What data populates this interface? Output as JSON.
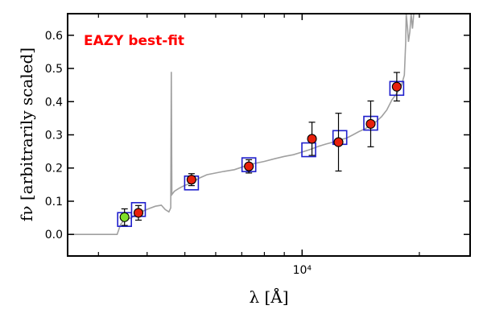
{
  "chart_data": {
    "type": "scatter",
    "annotation": "EAZY best-fit",
    "xlabel": "λ [Å]",
    "ylabel": "fν [arbitrarily scaled]",
    "xscale": "log",
    "xlim": [
      2500,
      27000
    ],
    "ylim": [
      -0.065,
      0.665
    ],
    "x_tick_labels": [
      {
        "value": 10000,
        "label": "10⁴"
      }
    ],
    "y_ticks": [
      0.0,
      0.1,
      0.2,
      0.3,
      0.4,
      0.5,
      0.6
    ],
    "y_tick_labels": [
      "0.0",
      "0.1",
      "0.2",
      "0.3",
      "0.4",
      "0.5",
      "0.6"
    ],
    "grid": false,
    "colors": {
      "annotation": "#ff0000",
      "model_line": "#a0a0a0",
      "observed_fill": "#e8200c",
      "special_fill": "#7fe02a",
      "model_box": "#1f1fcc",
      "errorbar": "#000000"
    },
    "model_photometry": [
      {
        "x": 3500,
        "y": 0.045
      },
      {
        "x": 3800,
        "y": 0.075
      },
      {
        "x": 5200,
        "y": 0.155
      },
      {
        "x": 7300,
        "y": 0.21
      },
      {
        "x": 10400,
        "y": 0.255
      },
      {
        "x": 12500,
        "y": 0.292
      },
      {
        "x": 15000,
        "y": 0.335
      },
      {
        "x": 17500,
        "y": 0.44
      }
    ],
    "observed_photometry": [
      {
        "x": 3500,
        "y": 0.052,
        "err": 0.025,
        "highlight": true
      },
      {
        "x": 3800,
        "y": 0.065,
        "err": 0.022,
        "highlight": false
      },
      {
        "x": 5200,
        "y": 0.165,
        "err": 0.018,
        "highlight": false
      },
      {
        "x": 7300,
        "y": 0.205,
        "err": 0.02,
        "highlight": false
      },
      {
        "x": 10600,
        "y": 0.288,
        "err": 0.05,
        "highlight": false
      },
      {
        "x": 12400,
        "y": 0.278,
        "err": 0.087,
        "highlight": false
      },
      {
        "x": 15000,
        "y": 0.333,
        "err": 0.069,
        "highlight": false
      },
      {
        "x": 17500,
        "y": 0.445,
        "err": 0.043,
        "highlight": false
      }
    ],
    "template_spectrum": [
      [
        2500,
        0.0
      ],
      [
        3350,
        0.0
      ],
      [
        3420,
        0.03
      ],
      [
        3500,
        0.045
      ],
      [
        3650,
        0.05
      ],
      [
        3750,
        0.062
      ],
      [
        3900,
        0.07
      ],
      [
        4050,
        0.078
      ],
      [
        4200,
        0.085
      ],
      [
        4350,
        0.088
      ],
      [
        4450,
        0.075
      ],
      [
        4550,
        0.068
      ],
      [
        4600,
        0.08
      ],
      [
        4615,
        0.49
      ],
      [
        4630,
        0.12
      ],
      [
        4700,
        0.13
      ],
      [
        4850,
        0.14
      ],
      [
        5000,
        0.148
      ],
      [
        5200,
        0.155
      ],
      [
        5450,
        0.17
      ],
      [
        5700,
        0.18
      ],
      [
        6000,
        0.185
      ],
      [
        6300,
        0.19
      ],
      [
        6700,
        0.195
      ],
      [
        7100,
        0.205
      ],
      [
        7500,
        0.213
      ],
      [
        8000,
        0.22
      ],
      [
        8500,
        0.228
      ],
      [
        9000,
        0.235
      ],
      [
        9500,
        0.24
      ],
      [
        10000,
        0.248
      ],
      [
        10500,
        0.256
      ],
      [
        11000,
        0.265
      ],
      [
        11500,
        0.272
      ],
      [
        12000,
        0.278
      ],
      [
        12500,
        0.285
      ],
      [
        13000,
        0.29
      ],
      [
        13500,
        0.3
      ],
      [
        14000,
        0.31
      ],
      [
        14500,
        0.318
      ],
      [
        15000,
        0.33
      ],
      [
        15500,
        0.34
      ],
      [
        16000,
        0.355
      ],
      [
        16500,
        0.375
      ],
      [
        17000,
        0.405
      ],
      [
        17500,
        0.425
      ],
      [
        18000,
        0.45
      ],
      [
        18300,
        0.48
      ],
      [
        18450,
        0.58
      ],
      [
        18500,
        0.665
      ],
      [
        18650,
        0.62
      ],
      [
        18750,
        0.58
      ],
      [
        18900,
        0.61
      ],
      [
        19050,
        0.665
      ],
      [
        19200,
        0.62
      ],
      [
        19350,
        0.665
      ]
    ]
  }
}
